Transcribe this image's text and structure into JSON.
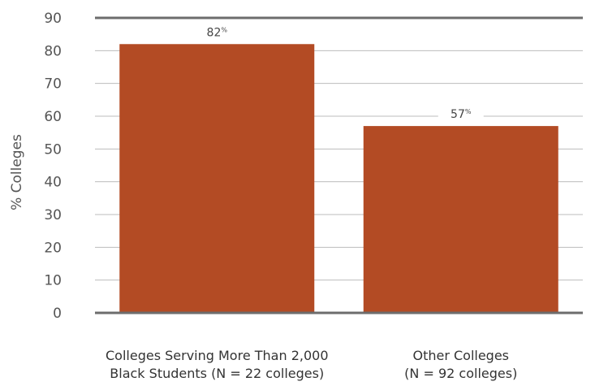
{
  "chart_data": {
    "type": "bar",
    "title": "",
    "xlabel": "",
    "ylabel": "% Colleges",
    "ylim": [
      0,
      90
    ],
    "yticks": [
      0,
      10,
      20,
      30,
      40,
      50,
      60,
      70,
      80,
      90
    ],
    "grid": true,
    "legend": "none",
    "bar_color": "#b34b24",
    "categories": [
      [
        "Colleges Serving More Than 2,000",
        "Black Students (N = 22 colleges)"
      ],
      [
        "Other Colleges",
        "(N = 92 colleges)"
      ]
    ],
    "values": [
      82,
      57
    ],
    "value_labels": [
      {
        "number": "82",
        "unit": "%"
      },
      {
        "number": "57",
        "unit": "%"
      }
    ]
  }
}
